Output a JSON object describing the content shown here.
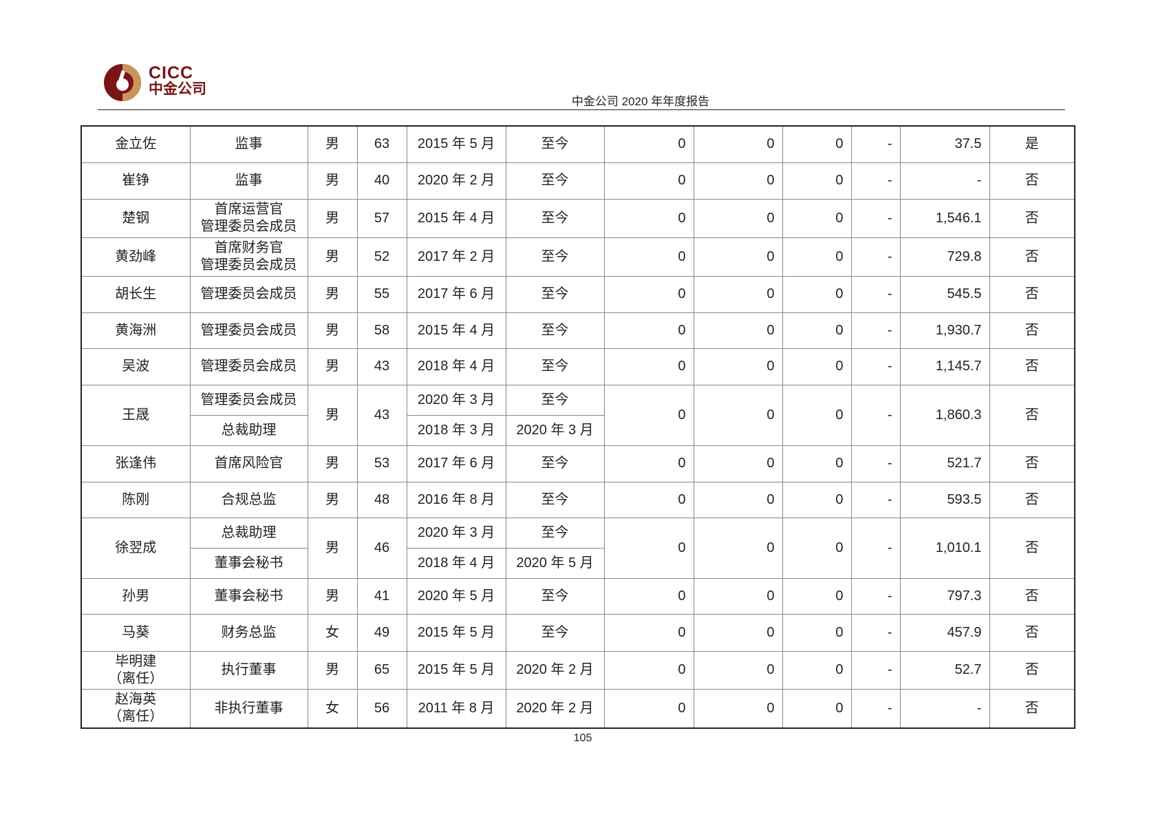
{
  "header": {
    "logo_en": "CICC",
    "logo_cn": "中金公司",
    "title": "中金公司 2020 年年度报告"
  },
  "colors": {
    "brand": "#7a1416",
    "gold": "#c8955a"
  },
  "rows": [
    {
      "name": "金立佐",
      "positions": [
        {
          "title": "监事",
          "start": "2015 年 5 月",
          "end": "至今"
        }
      ],
      "gender": "男",
      "age": "63",
      "c1": "0",
      "c2": "0",
      "c3": "0",
      "c4": "-",
      "pay": "37.5",
      "related": "是"
    },
    {
      "name": "崔铮",
      "positions": [
        {
          "title": "监事",
          "start": "2020 年 2 月",
          "end": "至今"
        }
      ],
      "gender": "男",
      "age": "40",
      "c1": "0",
      "c2": "0",
      "c3": "0",
      "c4": "-",
      "pay": "-",
      "related": "否"
    },
    {
      "name": "楚钢",
      "positions": [
        {
          "title": "首席运营官\n管理委员会成员",
          "start": "2015 年 4 月",
          "end": "至今"
        }
      ],
      "gender": "男",
      "age": "57",
      "c1": "0",
      "c2": "0",
      "c3": "0",
      "c4": "-",
      "pay": "1,546.1",
      "related": "否"
    },
    {
      "name": "黄劲峰",
      "positions": [
        {
          "title": "首席财务官\n管理委员会成员",
          "start": "2017 年 2 月",
          "end": "至今"
        }
      ],
      "gender": "男",
      "age": "52",
      "c1": "0",
      "c2": "0",
      "c3": "0",
      "c4": "-",
      "pay": "729.8",
      "related": "否"
    },
    {
      "name": "胡长生",
      "positions": [
        {
          "title": "管理委员会成员",
          "start": "2017 年 6 月",
          "end": "至今"
        }
      ],
      "gender": "男",
      "age": "55",
      "c1": "0",
      "c2": "0",
      "c3": "0",
      "c4": "-",
      "pay": "545.5",
      "related": "否"
    },
    {
      "name": "黄海洲",
      "positions": [
        {
          "title": "管理委员会成员",
          "start": "2015 年 4 月",
          "end": "至今"
        }
      ],
      "gender": "男",
      "age": "58",
      "c1": "0",
      "c2": "0",
      "c3": "0",
      "c4": "-",
      "pay": "1,930.7",
      "related": "否"
    },
    {
      "name": "吴波",
      "positions": [
        {
          "title": "管理委员会成员",
          "start": "2018 年 4 月",
          "end": "至今"
        }
      ],
      "gender": "男",
      "age": "43",
      "c1": "0",
      "c2": "0",
      "c3": "0",
      "c4": "-",
      "pay": "1,145.7",
      "related": "否"
    },
    {
      "name": "王晟",
      "positions": [
        {
          "title": "管理委员会成员",
          "start": "2020 年 3 月",
          "end": "至今"
        },
        {
          "title": "总裁助理",
          "start": "2018 年 3 月",
          "end": "2020 年 3 月"
        }
      ],
      "gender": "男",
      "age": "43",
      "c1": "0",
      "c2": "0",
      "c3": "0",
      "c4": "-",
      "pay": "1,860.3",
      "related": "否"
    },
    {
      "name": "张逢伟",
      "positions": [
        {
          "title": "首席风险官",
          "start": "2017 年 6 月",
          "end": "至今"
        }
      ],
      "gender": "男",
      "age": "53",
      "c1": "0",
      "c2": "0",
      "c3": "0",
      "c4": "-",
      "pay": "521.7",
      "related": "否"
    },
    {
      "name": "陈刚",
      "positions": [
        {
          "title": "合规总监",
          "start": "2016 年 8 月",
          "end": "至今"
        }
      ],
      "gender": "男",
      "age": "48",
      "c1": "0",
      "c2": "0",
      "c3": "0",
      "c4": "-",
      "pay": "593.5",
      "related": "否"
    },
    {
      "name": "徐翌成",
      "positions": [
        {
          "title": "总裁助理",
          "start": "2020 年 3 月",
          "end": "至今"
        },
        {
          "title": "董事会秘书",
          "start": "2018 年 4 月",
          "end": "2020 年 5 月"
        }
      ],
      "gender": "男",
      "age": "46",
      "c1": "0",
      "c2": "0",
      "c3": "0",
      "c4": "-",
      "pay": "1,010.1",
      "related": "否"
    },
    {
      "name": "孙男",
      "positions": [
        {
          "title": "董事会秘书",
          "start": "2020 年 5 月",
          "end": "至今"
        }
      ],
      "gender": "男",
      "age": "41",
      "c1": "0",
      "c2": "0",
      "c3": "0",
      "c4": "-",
      "pay": "797.3",
      "related": "否"
    },
    {
      "name": "马葵",
      "positions": [
        {
          "title": "财务总监",
          "start": "2015 年 5 月",
          "end": "至今"
        }
      ],
      "gender": "女",
      "age": "49",
      "c1": "0",
      "c2": "0",
      "c3": "0",
      "c4": "-",
      "pay": "457.9",
      "related": "否"
    },
    {
      "name": "毕明建\n（离任）",
      "positions": [
        {
          "title": "执行董事",
          "start": "2015 年 5 月",
          "end": "2020 年 2 月"
        }
      ],
      "gender": "男",
      "age": "65",
      "c1": "0",
      "c2": "0",
      "c3": "0",
      "c4": "-",
      "pay": "52.7",
      "related": "否"
    },
    {
      "name": "赵海英\n（离任）",
      "positions": [
        {
          "title": "非执行董事",
          "start": "2011 年 8 月",
          "end": "2020 年 2 月"
        }
      ],
      "gender": "女",
      "age": "56",
      "c1": "0",
      "c2": "0",
      "c3": "0",
      "c4": "-",
      "pay": "-",
      "related": "否"
    }
  ],
  "footer": {
    "page_number": "105"
  }
}
